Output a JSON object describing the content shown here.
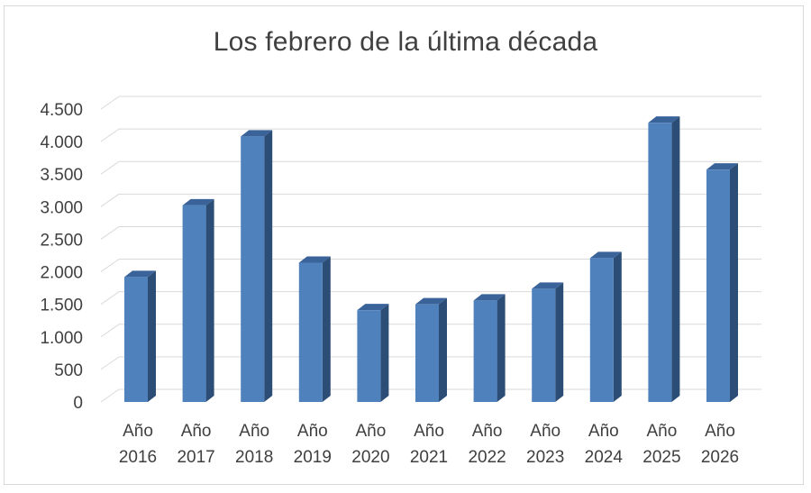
{
  "chart_data": {
    "type": "bar",
    "title": "Los febrero de la última década",
    "categories": [
      [
        "Año",
        "2016"
      ],
      [
        "Año",
        "2017"
      ],
      [
        "Año",
        "2018"
      ],
      [
        "Año",
        "2019"
      ],
      [
        "Año",
        "2020"
      ],
      [
        "Año",
        "2021"
      ],
      [
        "Año",
        "2022"
      ],
      [
        "Año",
        "2023"
      ],
      [
        "Año",
        "2024"
      ],
      [
        "Año",
        "2025"
      ],
      [
        "Año",
        "2026"
      ]
    ],
    "values": [
      1920,
      3020,
      4080,
      2140,
      1410,
      1500,
      1560,
      1740,
      2210,
      4290,
      3570
    ],
    "xlabel": "",
    "ylabel": "",
    "ylim": [
      0,
      4500
    ],
    "yticks": [
      0,
      500,
      1000,
      1500,
      2000,
      2500,
      3000,
      3500,
      4000,
      4500
    ],
    "ytick_labels": [
      "0",
      "500",
      "1.000",
      "1.500",
      "2.000",
      "2.500",
      "3.000",
      "3.500",
      "4.000",
      "4.500"
    ],
    "grid": true,
    "legend": false,
    "colors": {
      "bar_front": "#4f81bd",
      "bar_side": "#2c4d75",
      "bar_top": "#3a639a",
      "grid": "#d9d9d9",
      "text": "#404040"
    }
  }
}
